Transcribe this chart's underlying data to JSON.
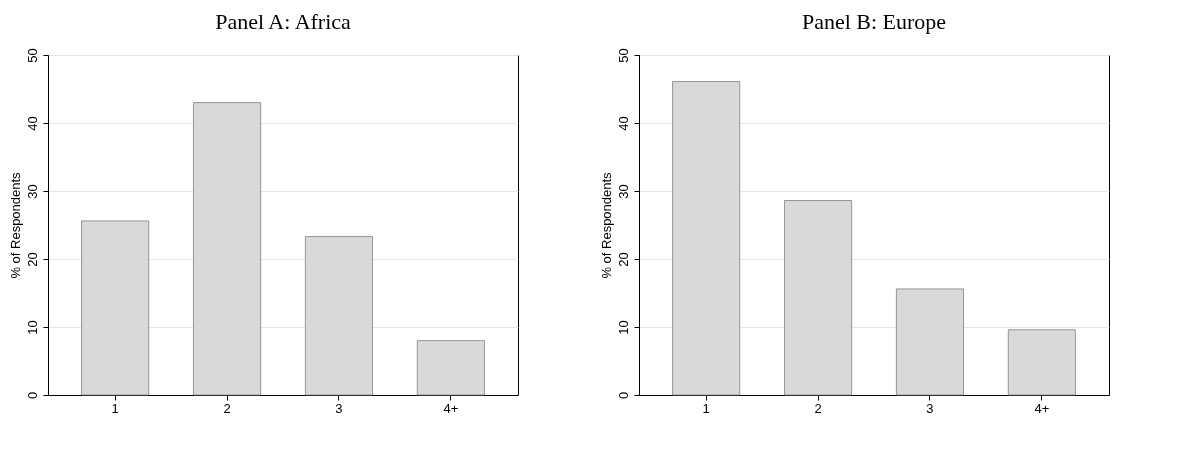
{
  "chart_data": [
    {
      "type": "bar",
      "title": "Panel A: Africa",
      "ylabel": "% of Respondents",
      "categories": [
        "1",
        "2",
        "3",
        "4+"
      ],
      "values": [
        25.6,
        43.0,
        23.3,
        8.0
      ],
      "color": "#d9d9d9",
      "ylim": [
        0,
        50
      ],
      "yticks": [
        0,
        10,
        20,
        30,
        40,
        50
      ],
      "grid": "y"
    },
    {
      "type": "bar",
      "title": "Panel B: Europe",
      "ylabel": "% of Respondents",
      "categories": [
        "1",
        "2",
        "3",
        "4+"
      ],
      "values": [
        46.1,
        28.6,
        15.6,
        9.6
      ],
      "color": "#d9d9d9",
      "ylim": [
        0,
        50
      ],
      "yticks": [
        0,
        10,
        20,
        30,
        40,
        50
      ],
      "grid": "y"
    }
  ]
}
